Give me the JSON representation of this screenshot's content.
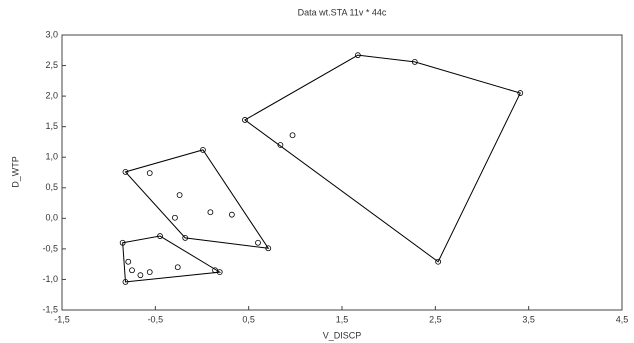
{
  "chart_data": {
    "type": "scatter",
    "title": "Data wt.STA 11v * 44c",
    "x_label": "V_DISCP",
    "y_label": "D_WTP",
    "xlim": [
      -1.5,
      4.5
    ],
    "ylim": [
      -1.5,
      3.0
    ],
    "xticks": [
      {
        "value": -1.5,
        "label": "-1,5"
      },
      {
        "value": -0.5,
        "label": "-0,5"
      },
      {
        "value": 0.5,
        "label": "0,5"
      },
      {
        "value": 1.5,
        "label": "1,5"
      },
      {
        "value": 2.5,
        "label": "2,5"
      },
      {
        "value": 3.5,
        "label": "3,5"
      },
      {
        "value": 4.5,
        "label": "4,5"
      }
    ],
    "yticks": [
      {
        "value": -1.5,
        "label": "-1,5"
      },
      {
        "value": -1.0,
        "label": "-1,0"
      },
      {
        "value": -0.5,
        "label": "-0,5"
      },
      {
        "value": 0.0,
        "label": "0,0"
      },
      {
        "value": 0.5,
        "label": "0,5"
      },
      {
        "value": 1.0,
        "label": "1,0"
      },
      {
        "value": 1.5,
        "label": "1,5"
      },
      {
        "value": 2.0,
        "label": "2,0"
      },
      {
        "value": 2.5,
        "label": "2,5"
      },
      {
        "value": 3.0,
        "label": "3,0"
      }
    ],
    "hulls": true,
    "series": [
      {
        "color": "#000000",
        "x": [
          0.46,
          1.67,
          2.28,
          3.41,
          2.53,
          0.84,
          0.97
        ],
        "values": [
          1.61,
          2.67,
          2.56,
          2.05,
          -0.71,
          1.2,
          1.36
        ]
      },
      {
        "color": "#000000",
        "x": [
          -0.82,
          0.01,
          0.71,
          -0.18,
          -0.56,
          -0.24,
          0.09,
          0.32,
          -0.29,
          0.6
        ],
        "values": [
          0.76,
          1.12,
          -0.49,
          -0.32,
          0.74,
          0.38,
          0.1,
          0.06,
          0.01,
          -0.4
        ]
      },
      {
        "color": "#000000",
        "x": [
          -0.85,
          -0.45,
          0.19,
          -0.82,
          -0.79,
          -0.66,
          -0.56,
          -0.26,
          0.14,
          -0.75
        ],
        "values": [
          -0.4,
          -0.29,
          -0.88,
          -1.04,
          -0.71,
          -0.93,
          -0.88,
          -0.8,
          -0.85,
          -0.85
        ]
      }
    ]
  }
}
